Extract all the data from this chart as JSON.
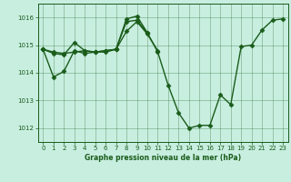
{
  "xlabel": "Graphe pression niveau de la mer (hPa)",
  "bg_color": "#c8eee0",
  "line_color": "#1a5c1a",
  "marker": "D",
  "markersize": 2.5,
  "linewidth": 1.0,
  "xlim": [
    -0.5,
    23.5
  ],
  "ylim": [
    1011.5,
    1016.5
  ],
  "yticks": [
    1012,
    1013,
    1014,
    1015,
    1016
  ],
  "xticks": [
    0,
    1,
    2,
    3,
    4,
    5,
    6,
    7,
    8,
    9,
    10,
    11,
    12,
    13,
    14,
    15,
    16,
    17,
    18,
    19,
    20,
    21,
    22,
    23
  ],
  "series": [
    {
      "x": [
        0,
        1,
        2,
        3,
        4,
        5,
        6,
        7,
        8,
        9,
        10,
        11,
        12,
        13,
        14,
        15,
        16,
        17,
        18,
        19,
        20,
        21,
        22,
        23
      ],
      "y": [
        1014.85,
        1013.85,
        1014.05,
        1014.8,
        1014.7,
        1014.75,
        1014.8,
        1014.85,
        1015.85,
        1015.9,
        1015.45,
        1014.75,
        1013.55,
        1012.55,
        1012.0,
        1012.1,
        1012.1,
        1013.2,
        1012.85,
        1014.95,
        1015.0,
        1015.55,
        1015.9,
        1015.95
      ]
    },
    {
      "x": [
        0,
        1,
        2,
        3,
        4,
        5,
        6,
        7,
        8,
        9,
        10,
        11
      ],
      "y": [
        1014.85,
        1014.7,
        1014.65,
        1015.1,
        1014.8,
        1014.75,
        1014.8,
        1014.85,
        1015.5,
        1015.85,
        1015.4,
        1014.8
      ]
    },
    {
      "x": [
        0,
        1,
        2,
        3,
        4,
        5,
        6,
        7,
        8,
        9,
        10
      ],
      "y": [
        1014.85,
        1014.75,
        1014.7,
        1014.75,
        1014.8,
        1014.75,
        1014.75,
        1014.85,
        1015.95,
        1016.05,
        1015.45
      ]
    }
  ]
}
